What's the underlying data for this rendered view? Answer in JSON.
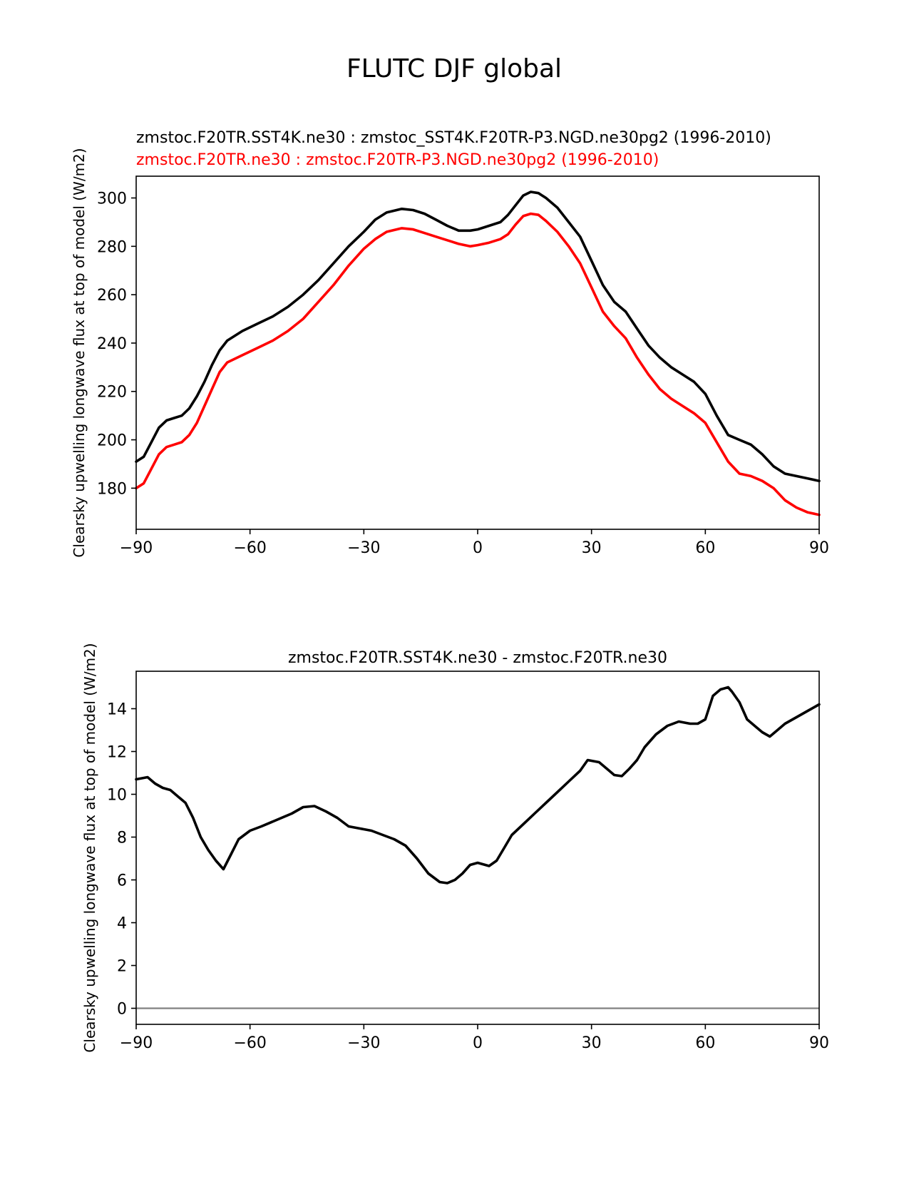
{
  "figure_title": "FLUTC DJF global",
  "chart_data": [
    {
      "type": "line",
      "title_lines": [
        {
          "text": "zmstoc.F20TR.SST4K.ne30 : zmstoc_SST4K.F20TR-P3.NGD.ne30pg2 (1996-2010)",
          "color": "#000000"
        },
        {
          "text": "zmstoc.F20TR.ne30 : zmstoc.F20TR-P3.NGD.ne30pg2 (1996-2010)",
          "color": "#ff0000"
        }
      ],
      "ylabel": "Clearsky upwelling longwave flux at top of model (W/m2)",
      "xlabel": "",
      "xlim": [
        -90,
        90
      ],
      "ylim": [
        163,
        309
      ],
      "xticks": [
        -90,
        -60,
        -30,
        0,
        30,
        60,
        90
      ],
      "xtick_labels": [
        "−90",
        "−60",
        "−30",
        "0",
        "30",
        "60",
        "90"
      ],
      "yticks": [
        180,
        200,
        220,
        240,
        260,
        280,
        300
      ],
      "grid": false,
      "series": [
        {
          "name": "zmstoc.F20TR.SST4K.ne30",
          "color": "#000000",
          "points": [
            [
              -90,
              191
            ],
            [
              -88,
              193
            ],
            [
              -86,
              199
            ],
            [
              -84,
              205
            ],
            [
              -82,
              208
            ],
            [
              -80,
              209
            ],
            [
              -78,
              210
            ],
            [
              -76,
              213
            ],
            [
              -74,
              218
            ],
            [
              -72,
              224
            ],
            [
              -70,
              231
            ],
            [
              -68,
              237
            ],
            [
              -66,
              241
            ],
            [
              -62,
              245
            ],
            [
              -58,
              248
            ],
            [
              -54,
              251
            ],
            [
              -50,
              255
            ],
            [
              -46,
              260
            ],
            [
              -42,
              266
            ],
            [
              -38,
              273
            ],
            [
              -34,
              280
            ],
            [
              -30,
              286
            ],
            [
              -27,
              291
            ],
            [
              -24,
              294
            ],
            [
              -20,
              295.5
            ],
            [
              -17,
              295
            ],
            [
              -14,
              293.5
            ],
            [
              -11,
              291
            ],
            [
              -8,
              288.5
            ],
            [
              -5,
              286.5
            ],
            [
              -2,
              286.5
            ],
            [
              0,
              287
            ],
            [
              3,
              288.5
            ],
            [
              6,
              290
            ],
            [
              8,
              293
            ],
            [
              10,
              297
            ],
            [
              12,
              301
            ],
            [
              14,
              302.5
            ],
            [
              16,
              302
            ],
            [
              18,
              300
            ],
            [
              21,
              296
            ],
            [
              24,
              290
            ],
            [
              27,
              284
            ],
            [
              30,
              274
            ],
            [
              33,
              264
            ],
            [
              36,
              257
            ],
            [
              39,
              253
            ],
            [
              42,
              246
            ],
            [
              45,
              239
            ],
            [
              48,
              234
            ],
            [
              51,
              230
            ],
            [
              54,
              227
            ],
            [
              57,
              224
            ],
            [
              60,
              219
            ],
            [
              63,
              210
            ],
            [
              66,
              202
            ],
            [
              69,
              200
            ],
            [
              72,
              198
            ],
            [
              75,
              194
            ],
            [
              78,
              189
            ],
            [
              81,
              186
            ],
            [
              84,
              185
            ],
            [
              87,
              184
            ],
            [
              90,
              183
            ]
          ]
        },
        {
          "name": "zmstoc.F20TR.ne30",
          "color": "#ff0000",
          "points": [
            [
              -90,
              180
            ],
            [
              -88,
              182
            ],
            [
              -86,
              188
            ],
            [
              -84,
              194
            ],
            [
              -82,
              197
            ],
            [
              -80,
              198
            ],
            [
              -78,
              199
            ],
            [
              -76,
              202
            ],
            [
              -74,
              207
            ],
            [
              -72,
              214
            ],
            [
              -70,
              221
            ],
            [
              -68,
              228
            ],
            [
              -66,
              232
            ],
            [
              -62,
              235
            ],
            [
              -58,
              238
            ],
            [
              -54,
              241
            ],
            [
              -50,
              245
            ],
            [
              -46,
              250
            ],
            [
              -42,
              257
            ],
            [
              -38,
              264
            ],
            [
              -34,
              272
            ],
            [
              -30,
              279
            ],
            [
              -27,
              283
            ],
            [
              -24,
              286
            ],
            [
              -20,
              287.5
            ],
            [
              -17,
              287
            ],
            [
              -14,
              285.5
            ],
            [
              -11,
              284
            ],
            [
              -8,
              282.5
            ],
            [
              -5,
              281
            ],
            [
              -2,
              280
            ],
            [
              0,
              280.5
            ],
            [
              3,
              281.5
            ],
            [
              6,
              283
            ],
            [
              8,
              285
            ],
            [
              10,
              289
            ],
            [
              12,
              292.5
            ],
            [
              14,
              293.5
            ],
            [
              16,
              293
            ],
            [
              18,
              290.5
            ],
            [
              21,
              286
            ],
            [
              24,
              280
            ],
            [
              27,
              273
            ],
            [
              30,
              263
            ],
            [
              33,
              253
            ],
            [
              36,
              247
            ],
            [
              39,
              242
            ],
            [
              42,
              234
            ],
            [
              45,
              227
            ],
            [
              48,
              221
            ],
            [
              51,
              217
            ],
            [
              54,
              214
            ],
            [
              57,
              211
            ],
            [
              60,
              207
            ],
            [
              63,
              199
            ],
            [
              66,
              191
            ],
            [
              69,
              186
            ],
            [
              72,
              185
            ],
            [
              75,
              183
            ],
            [
              78,
              180
            ],
            [
              81,
              175
            ],
            [
              84,
              172
            ],
            [
              87,
              170
            ],
            [
              90,
              169
            ]
          ]
        }
      ]
    },
    {
      "type": "line",
      "title_lines": [
        {
          "text": "zmstoc.F20TR.SST4K.ne30 - zmstoc.F20TR.ne30",
          "color": "#000000"
        }
      ],
      "ylabel": "Clearsky upwelling longwave flux at top of model (W/m2)",
      "xlabel": "",
      "xlim": [
        -90,
        90
      ],
      "ylim": [
        -0.75,
        15.75
      ],
      "xticks": [
        -90,
        -60,
        -30,
        0,
        30,
        60,
        90
      ],
      "xtick_labels": [
        "−90",
        "−60",
        "−30",
        "0",
        "30",
        "60",
        "90"
      ],
      "yticks": [
        0,
        2,
        4,
        6,
        8,
        10,
        12,
        14
      ],
      "grid": false,
      "reference_line": {
        "y": 0,
        "color": "#808080"
      },
      "series": [
        {
          "name": "zmstoc.F20TR.SST4K.ne30 - zmstoc.F20TR.ne30",
          "color": "#000000",
          "points": [
            [
              -90,
              10.7
            ],
            [
              -87,
              10.8
            ],
            [
              -85,
              10.5
            ],
            [
              -83,
              10.3
            ],
            [
              -81,
              10.2
            ],
            [
              -79,
              9.9
            ],
            [
              -77,
              9.6
            ],
            [
              -75,
              8.9
            ],
            [
              -73,
              8.0
            ],
            [
              -71,
              7.4
            ],
            [
              -69,
              6.9
            ],
            [
              -67,
              6.5
            ],
            [
              -65,
              7.2
            ],
            [
              -63,
              7.9
            ],
            [
              -60,
              8.3
            ],
            [
              -57,
              8.5
            ],
            [
              -53,
              8.8
            ],
            [
              -49,
              9.1
            ],
            [
              -46,
              9.4
            ],
            [
              -43,
              9.45
            ],
            [
              -40,
              9.2
            ],
            [
              -37,
              8.9
            ],
            [
              -34,
              8.5
            ],
            [
              -31,
              8.4
            ],
            [
              -28,
              8.3
            ],
            [
              -25,
              8.1
            ],
            [
              -22,
              7.9
            ],
            [
              -19,
              7.6
            ],
            [
              -16,
              7.0
            ],
            [
              -13,
              6.3
            ],
            [
              -10,
              5.9
            ],
            [
              -8,
              5.85
            ],
            [
              -6,
              6.0
            ],
            [
              -4,
              6.3
            ],
            [
              -2,
              6.7
            ],
            [
              0,
              6.8
            ],
            [
              3,
              6.65
            ],
            [
              5,
              6.9
            ],
            [
              7,
              7.5
            ],
            [
              9,
              8.1
            ],
            [
              12,
              8.6
            ],
            [
              15,
              9.1
            ],
            [
              18,
              9.6
            ],
            [
              21,
              10.1
            ],
            [
              24,
              10.6
            ],
            [
              27,
              11.1
            ],
            [
              29,
              11.6
            ],
            [
              32,
              11.5
            ],
            [
              34,
              11.2
            ],
            [
              36,
              10.9
            ],
            [
              38,
              10.85
            ],
            [
              40,
              11.2
            ],
            [
              42,
              11.6
            ],
            [
              44,
              12.2
            ],
            [
              47,
              12.8
            ],
            [
              50,
              13.2
            ],
            [
              53,
              13.4
            ],
            [
              56,
              13.3
            ],
            [
              58,
              13.3
            ],
            [
              60,
              13.5
            ],
            [
              62,
              14.6
            ],
            [
              64,
              14.9
            ],
            [
              66,
              15.0
            ],
            [
              67,
              14.8
            ],
            [
              69,
              14.3
            ],
            [
              71,
              13.5
            ],
            [
              73,
              13.2
            ],
            [
              75,
              12.9
            ],
            [
              77,
              12.7
            ],
            [
              79,
              13.0
            ],
            [
              81,
              13.3
            ],
            [
              84,
              13.6
            ],
            [
              87,
              13.9
            ],
            [
              90,
              14.2
            ]
          ]
        }
      ]
    }
  ]
}
